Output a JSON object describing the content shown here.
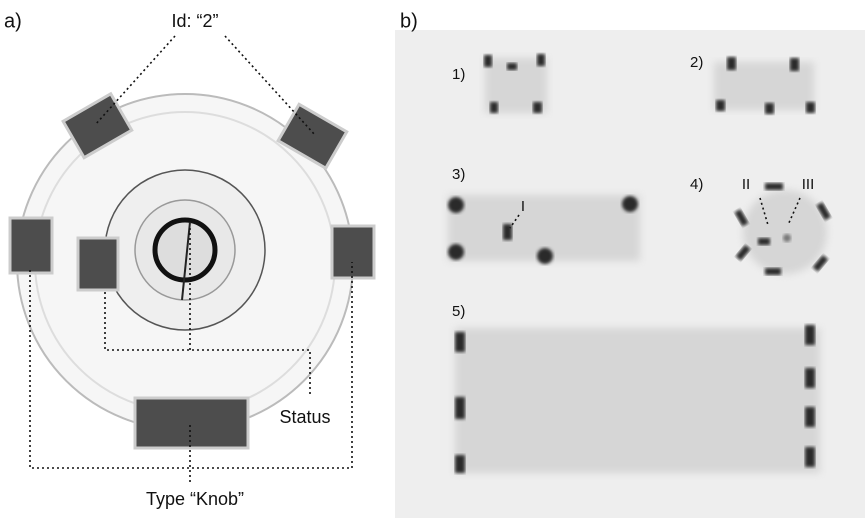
{
  "panel_a": {
    "label": "a)",
    "id_label": "Id: “2”",
    "status_label": "Status",
    "type_label": "Type “Knob”"
  },
  "panel_b": {
    "label": "b)",
    "images": [
      "1)",
      "2)",
      "3)",
      "4)",
      "5)"
    ],
    "markers": [
      "I",
      "II",
      "III"
    ]
  }
}
